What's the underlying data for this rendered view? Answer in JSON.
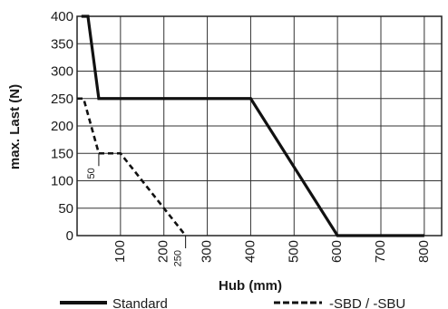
{
  "chart_data": {
    "type": "line",
    "title": "",
    "xlabel": "Hub (mm)",
    "ylabel": "max. Last (N)",
    "xlim": [
      0,
      840
    ],
    "ylim": [
      0,
      400
    ],
    "x_ticks": [
      100,
      200,
      300,
      400,
      500,
      600,
      700,
      800
    ],
    "y_ticks": [
      0,
      50,
      100,
      150,
      200,
      250,
      300,
      350,
      400
    ],
    "grid": true,
    "legend_position": "bottom",
    "series": [
      {
        "name": "Standard",
        "style": "solid",
        "x": [
          10,
          25,
          50,
          400,
          600,
          800
        ],
        "y": [
          400,
          400,
          250,
          250,
          0,
          0
        ]
      },
      {
        "name": "-SBD / -SBU",
        "style": "dashed",
        "x": [
          0,
          15,
          50,
          50,
          100,
          250
        ],
        "y": [
          250,
          250,
          150,
          150,
          150,
          0
        ]
      }
    ],
    "annotations": [
      {
        "text": "50",
        "x": 50,
        "y": 150
      },
      {
        "text": "250",
        "x": 250,
        "y": 0
      }
    ]
  }
}
